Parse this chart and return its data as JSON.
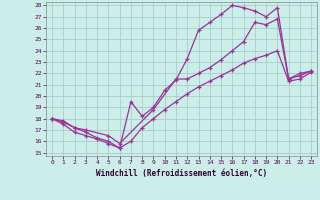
{
  "xlabel": "Windchill (Refroidissement éolien,°C)",
  "bg_color": "#cceee8",
  "grid_color": "#aacccc",
  "line_color": "#993399",
  "xlim": [
    0,
    23
  ],
  "ylim": [
    15,
    28
  ],
  "xticks": [
    0,
    1,
    2,
    3,
    4,
    5,
    6,
    7,
    8,
    9,
    10,
    11,
    12,
    13,
    14,
    15,
    16,
    17,
    18,
    19,
    20,
    21,
    22,
    23
  ],
  "yticks": [
    15,
    16,
    17,
    18,
    19,
    20,
    21,
    22,
    23,
    24,
    25,
    26,
    27,
    28
  ],
  "line1_x": [
    0,
    1,
    2,
    3,
    4,
    5,
    6,
    7,
    8,
    9,
    10,
    11,
    12,
    13,
    14,
    15,
    16,
    17,
    18,
    19,
    20,
    21,
    22,
    23
  ],
  "line1_y": [
    18,
    17.7,
    17.2,
    16.8,
    16.3,
    16.0,
    15.4,
    19.5,
    18.2,
    19.0,
    20.5,
    21.4,
    23.3,
    25.8,
    26.5,
    27.2,
    28.0,
    27.8,
    27.5,
    27.0,
    27.8,
    21.5,
    21.8,
    22.2
  ],
  "line2_x": [
    0,
    1,
    2,
    3,
    5,
    6,
    9,
    11,
    12,
    13,
    14,
    15,
    16,
    17,
    18,
    19,
    20,
    21,
    22,
    23
  ],
  "line2_y": [
    18,
    17.8,
    17.2,
    17.0,
    16.5,
    15.8,
    18.8,
    21.5,
    21.5,
    22.0,
    22.5,
    23.2,
    24.0,
    24.8,
    26.5,
    26.3,
    26.8,
    21.5,
    22.0,
    22.2
  ],
  "line3_x": [
    0,
    1,
    2,
    3,
    4,
    5,
    6,
    7,
    8,
    9,
    10,
    11,
    12,
    13,
    14,
    15,
    16,
    17,
    18,
    19,
    20,
    21,
    22,
    23
  ],
  "line3_y": [
    18.0,
    17.5,
    16.8,
    16.5,
    16.2,
    15.8,
    15.4,
    16.0,
    17.2,
    18.0,
    18.8,
    19.5,
    20.2,
    20.8,
    21.3,
    21.8,
    22.3,
    22.9,
    23.3,
    23.6,
    24.0,
    21.3,
    21.5,
    22.1
  ]
}
